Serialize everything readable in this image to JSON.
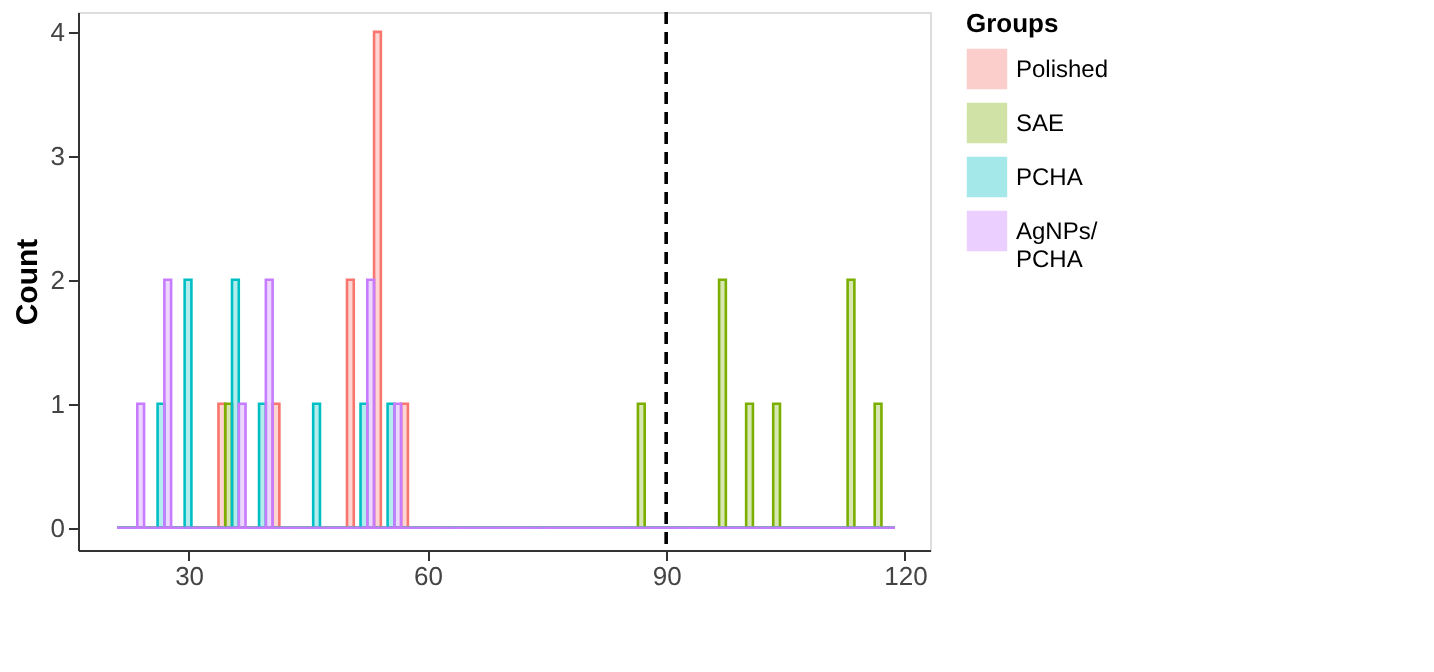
{
  "chart_data": {
    "type": "histogram",
    "ylabel": "Count",
    "legend_title": "Groups",
    "legend": "right",
    "xlim": [
      16.1,
      123.15
    ],
    "ylim": [
      -0.18,
      4.16
    ],
    "xticks": [
      30,
      60,
      90,
      120
    ],
    "yticks": [
      0,
      1,
      2,
      3,
      4
    ],
    "ref_lines": [
      {
        "axis": "x",
        "value": 90,
        "color": "#000000",
        "line_style": "dashed"
      }
    ],
    "bins": [
      21,
      21.85,
      22.7,
      23.55,
      24.4,
      25.25,
      26.1,
      26.95,
      27.8,
      28.65,
      29.5,
      30.35,
      31.2,
      32.05,
      32.9,
      33.75,
      34.6,
      35.45,
      36.3,
      37.15,
      38,
      38.85,
      39.7,
      40.55,
      41.4,
      42.25,
      43.1,
      43.95,
      44.8,
      45.65,
      46.5,
      47.35,
      48.2,
      49.05,
      49.9,
      50.75,
      51.6,
      52.45,
      53.3,
      54.15,
      55,
      55.85,
      56.7,
      57.55,
      58.4,
      59.25,
      60.1,
      60.95,
      61.8,
      62.65,
      63.5,
      64.35,
      65.2,
      66.05,
      66.9,
      67.75,
      68.6,
      69.45,
      70.3,
      71.15,
      72,
      72.85,
      73.7,
      74.55,
      75.4,
      76.25,
      77.1,
      77.95,
      78.8,
      79.65,
      80.5,
      81.35,
      82.2,
      83.05,
      83.9,
      84.75,
      85.6,
      86.45,
      87.3,
      88.15,
      89,
      89.85,
      90.7,
      91.55,
      92.4,
      93.25,
      94.1,
      94.95,
      95.8,
      96.65,
      97.5,
      98.35,
      99.2,
      100.05,
      100.9,
      101.75,
      102.6,
      103.45,
      104.3,
      105.15,
      106,
      106.85,
      107.7,
      108.55,
      109.4,
      110.25,
      111.1,
      111.95,
      112.8,
      113.65,
      114.5,
      115.35,
      116.2,
      117.05,
      117.9,
      118.75
    ],
    "series": [
      {
        "name": "Polished",
        "color": "#f8766d",
        "values": [
          0,
          0,
          0,
          0,
          0,
          0,
          0,
          0,
          0,
          0,
          0,
          0,
          0,
          0,
          0,
          1,
          0,
          0,
          0,
          0,
          0,
          0,
          0,
          1,
          0,
          0,
          0,
          0,
          0,
          0,
          0,
          0,
          0,
          0,
          2,
          0,
          0,
          0,
          4,
          0,
          0,
          0,
          1,
          0,
          0,
          0,
          0,
          0,
          0,
          0,
          0,
          0,
          0,
          0,
          0,
          0,
          0,
          0,
          0,
          0,
          0,
          0,
          0,
          0,
          0,
          0,
          0,
          0,
          0,
          0,
          0,
          0,
          0,
          0,
          0,
          0,
          0,
          0,
          0,
          0,
          0,
          0,
          0,
          0,
          0,
          0,
          0,
          0,
          0,
          0,
          0,
          0,
          0,
          0,
          0,
          0,
          0,
          0,
          0,
          0,
          0,
          0,
          0,
          0,
          0,
          0,
          0,
          0,
          0,
          0,
          0,
          0,
          0,
          0,
          0
        ]
      },
      {
        "name": "SAE",
        "color": "#7cae00",
        "values": [
          0,
          0,
          0,
          0,
          0,
          0,
          0,
          0,
          0,
          0,
          0,
          0,
          0,
          0,
          0,
          0,
          1,
          0,
          0,
          0,
          0,
          0,
          0,
          0,
          0,
          0,
          0,
          0,
          0,
          0,
          0,
          0,
          0,
          0,
          0,
          0,
          0,
          0,
          0,
          0,
          0,
          0,
          0,
          0,
          0,
          0,
          0,
          0,
          0,
          0,
          0,
          0,
          0,
          0,
          0,
          0,
          0,
          0,
          0,
          0,
          0,
          0,
          0,
          0,
          0,
          0,
          0,
          0,
          0,
          0,
          0,
          0,
          0,
          0,
          0,
          0,
          0,
          1,
          0,
          0,
          0,
          0,
          0,
          0,
          0,
          0,
          0,
          0,
          0,
          2,
          0,
          0,
          0,
          1,
          0,
          0,
          0,
          1,
          0,
          0,
          0,
          0,
          0,
          0,
          0,
          0,
          0,
          0,
          2,
          0,
          0,
          0,
          1,
          0,
          0
        ]
      },
      {
        "name": "PCHA",
        "color": "#00bfc4",
        "values": [
          0,
          0,
          0,
          0,
          0,
          0,
          1,
          0,
          0,
          0,
          2,
          0,
          0,
          0,
          0,
          0,
          0,
          2,
          0,
          0,
          0,
          1,
          0,
          0,
          0,
          0,
          0,
          0,
          0,
          1,
          0,
          0,
          0,
          0,
          0,
          0,
          1,
          0,
          0,
          0,
          1,
          0,
          0,
          0,
          0,
          0,
          0,
          0,
          0,
          0,
          0,
          0,
          0,
          0,
          0,
          0,
          0,
          0,
          0,
          0,
          0,
          0,
          0,
          0,
          0,
          0,
          0,
          0,
          0,
          0,
          0,
          0,
          0,
          0,
          0,
          0,
          0,
          0,
          0,
          0,
          0,
          0,
          0,
          0,
          0,
          0,
          0,
          0,
          0,
          0,
          0,
          0,
          0,
          0,
          0,
          0,
          0,
          0,
          0,
          0,
          0,
          0,
          0,
          0,
          0,
          0,
          0,
          0,
          0,
          0,
          0,
          0,
          0,
          0,
          0
        ]
      },
      {
        "name": "AgNPs/\nPCHA",
        "color": "#c77cff",
        "values": [
          0,
          0,
          0,
          1,
          0,
          0,
          0,
          2,
          0,
          0,
          0,
          0,
          0,
          0,
          0,
          0,
          0,
          0,
          1,
          0,
          0,
          0,
          2,
          0,
          0,
          0,
          0,
          0,
          0,
          0,
          0,
          0,
          0,
          0,
          0,
          0,
          0,
          2,
          0,
          0,
          0,
          1,
          0,
          0,
          0,
          0,
          0,
          0,
          0,
          0,
          0,
          0,
          0,
          0,
          0,
          0,
          0,
          0,
          0,
          0,
          0,
          0,
          0,
          0,
          0,
          0,
          0,
          0,
          0,
          0,
          0,
          0,
          0,
          0,
          0,
          0,
          0,
          0,
          0,
          0,
          0,
          0,
          0,
          0,
          0,
          0,
          0,
          0,
          0,
          0,
          0,
          0,
          0,
          0,
          0,
          0,
          0,
          0,
          0,
          0,
          0,
          0,
          0,
          0,
          0,
          0,
          0,
          0,
          0,
          0,
          0,
          0,
          0,
          0,
          0
        ]
      }
    ]
  }
}
